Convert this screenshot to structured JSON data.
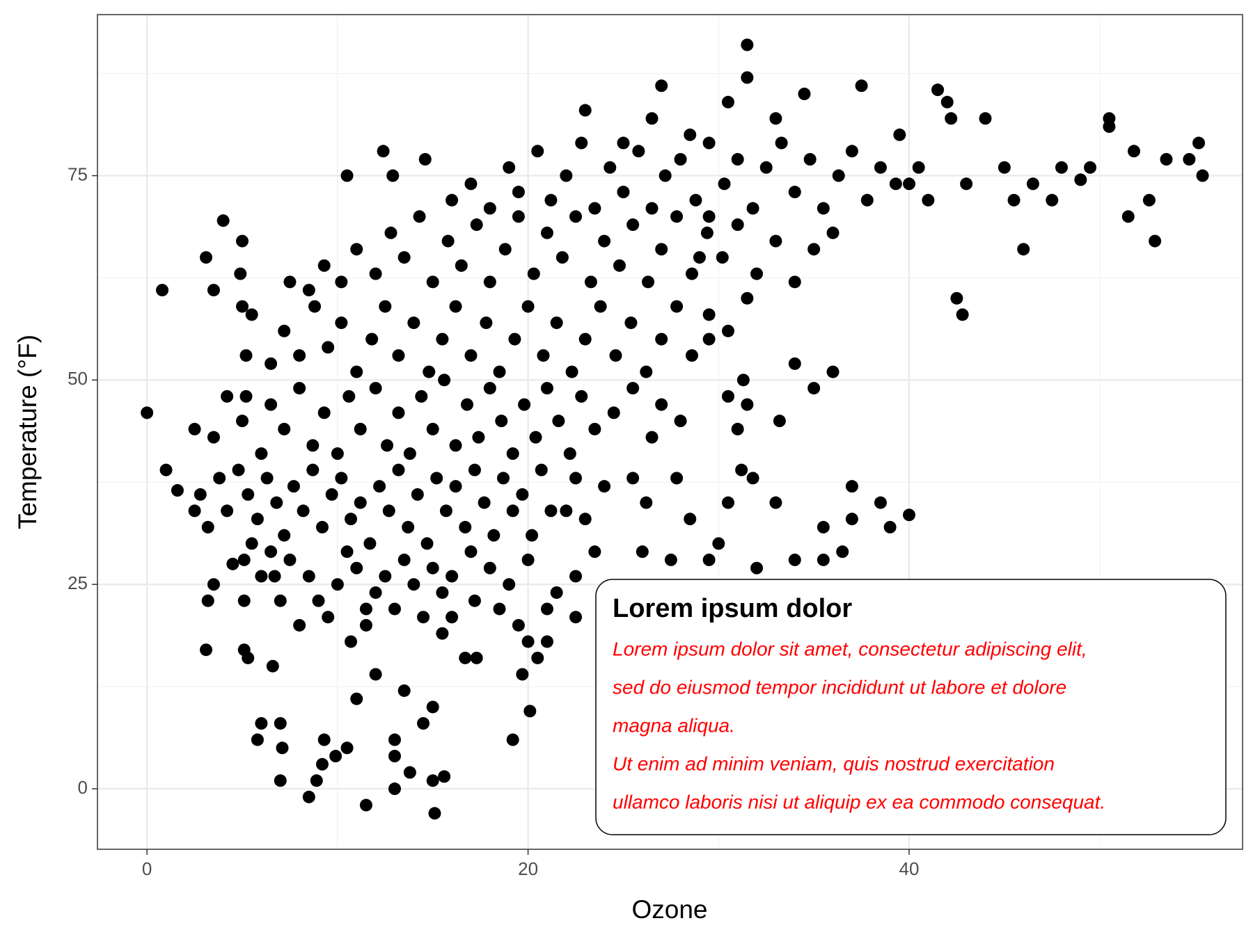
{
  "chart_data": {
    "type": "scatter",
    "x_label": "Ozone",
    "y_label": "Temperature (°F)",
    "xlim": [
      -2.6,
      57.5
    ],
    "ylim": [
      -7.4,
      94.7
    ],
    "xticks": [
      0,
      20,
      40
    ],
    "yticks": [
      0,
      25,
      50,
      75
    ],
    "grid": true,
    "color": "#000000",
    "x": [
      0,
      0.8,
      1,
      1.6,
      2.5,
      2.5,
      3.1,
      3.1,
      3.5,
      4,
      4.9,
      5,
      5.1,
      5.2,
      5.2,
      5.1,
      5.1,
      6.7,
      5,
      5.3,
      5.8,
      6,
      6.6,
      7,
      7.1,
      7,
      8.5,
      8.9,
      9.2,
      9.3,
      9.9,
      10.5,
      10.5,
      10.7,
      11,
      11.5,
      11.5,
      12,
      13,
      13,
      13,
      13.5,
      13.8,
      14.5,
      15,
      15.1,
      15.6,
      15,
      12.4,
      12.9,
      14.6,
      19.2,
      20.1,
      19.7,
      20,
      17.3,
      16.7,
      15.5,
      16,
      17.2,
      44,
      42,
      42.2,
      43,
      42.5,
      42.8,
      45,
      46,
      46.5,
      48,
      45.5,
      47.5,
      49,
      49.5,
      50.5,
      50.5,
      51.5,
      51.8,
      52.6,
      52.9,
      53.5,
      54.7,
      55.2,
      55.4,
      41.5,
      40.5,
      41,
      40,
      39.5,
      37.5,
      34.5,
      33,
      31.5,
      30.5,
      27,
      31.5,
      23,
      28.5,
      26.5,
      25,
      40,
      38.5,
      39,
      37,
      37,
      36.5,
      35.5,
      35.5,
      34,
      33,
      32,
      31.8,
      31.2,
      30.5,
      30,
      29.5,
      28.5,
      27.8,
      27.5,
      26,
      26.2,
      25.5,
      24,
      23.5,
      22.5,
      22,
      22.5,
      21.5,
      21,
      21,
      20.5,
      22.5,
      36,
      35,
      34,
      33.2,
      31.3,
      31.5,
      30.5,
      31,
      29.5,
      29,
      29.5,
      3.2,
      3.5,
      4.5,
      5.5,
      6,
      6.5,
      7,
      7.5,
      8,
      8.5,
      9,
      9.5,
      10,
      10.5,
      11,
      11.5,
      12,
      12.5,
      13,
      13.5,
      14,
      14.5,
      15,
      15.5,
      16,
      17,
      18,
      19,
      20,
      18.5,
      19.5,
      2.8,
      3.2,
      3.8,
      4.2,
      4.8,
      5.3,
      5.8,
      6.3,
      6.8,
      7.2,
      7.7,
      8.2,
      8.7,
      9.2,
      9.7,
      10.2,
      10.7,
      11.2,
      11.7,
      12.2,
      12.7,
      13.2,
      13.7,
      14.2,
      14.7,
      15.2,
      15.7,
      16.2,
      16.7,
      17.2,
      17.7,
      18.2,
      18.7,
      19.2,
      19.7,
      20.2,
      20.7,
      21.2,
      23,
      3.5,
      4.2,
      5,
      6,
      6.5,
      7.2,
      8,
      8.7,
      9.3,
      10,
      10.6,
      11.2,
      12,
      12.6,
      13.2,
      13.8,
      14.4,
      15,
      15.6,
      16.2,
      16.8,
      17.4,
      18,
      18.6,
      19.2,
      19.8,
      20.4,
      21,
      21.6,
      22.2,
      22.8,
      23.5,
      24.5,
      25.5,
      26.5,
      27,
      28,
      5.5,
      6.5,
      7.2,
      8,
      8.8,
      9.5,
      10.2,
      11,
      11.8,
      12.5,
      13.2,
      14,
      14.8,
      15.5,
      16.2,
      17,
      17.8,
      18.5,
      19.3,
      20,
      20.8,
      21.5,
      22.3,
      23,
      23.8,
      24.6,
      25.4,
      26.2,
      27,
      27.8,
      28.6,
      29.5,
      30.5,
      31.5,
      7.5,
      8.5,
      9.3,
      10.2,
      11,
      12,
      12.8,
      13.5,
      14.3,
      15,
      15.8,
      16.5,
      17.3,
      18,
      18.8,
      19.5,
      20.3,
      21,
      21.8,
      22.5,
      23.3,
      24,
      24.8,
      25.5,
      26.3,
      27,
      27.8,
      28.6,
      29.4,
      30.2,
      31,
      32,
      33,
      34,
      35,
      36,
      16,
      17,
      18,
      19,
      19.5,
      20.5,
      21.2,
      22,
      22.8,
      23.5,
      24.3,
      25,
      25.8,
      26.5,
      27.2,
      28,
      28.8,
      29.5,
      30.3,
      31,
      31.8,
      32.5,
      33.3,
      34,
      34.8,
      35.5,
      36.3,
      37,
      37.8,
      38.5,
      39.3
    ],
    "y": [
      46,
      61,
      39,
      36.5,
      44,
      34,
      65,
      17,
      61,
      69.5,
      63,
      59,
      23,
      53,
      48,
      17,
      28,
      26,
      67,
      16,
      6,
      8,
      15,
      1,
      5,
      8,
      -1,
      1,
      3,
      6,
      4,
      5,
      75,
      18,
      11,
      22,
      -2,
      14,
      0,
      4,
      6,
      12,
      2,
      8,
      1,
      -3,
      1.5,
      10,
      78,
      75,
      77,
      6,
      9.5,
      14,
      18,
      16,
      16,
      19,
      21,
      23,
      82,
      84,
      82,
      74,
      60,
      58,
      76,
      66,
      74,
      76,
      72,
      72,
      74.5,
      76,
      82,
      81,
      70,
      78,
      72,
      67,
      77,
      77,
      79,
      75,
      85.5,
      76,
      72,
      74,
      80,
      86,
      85,
      82,
      91,
      84,
      86,
      87,
      83,
      80,
      82,
      79,
      33.5,
      35,
      32,
      37,
      33,
      29,
      32,
      28,
      28,
      35,
      27,
      38,
      39,
      35,
      30,
      28,
      33,
      38,
      28,
      29,
      35,
      38,
      37,
      29,
      38,
      34,
      26,
      24,
      22,
      18,
      16,
      21,
      51,
      49,
      52,
      45,
      50,
      47,
      48,
      44,
      55,
      65,
      70,
      23,
      25,
      27.5,
      30,
      26,
      29,
      23,
      28,
      20,
      26,
      23,
      21,
      25,
      29,
      27,
      20,
      24,
      26,
      22,
      28,
      25,
      21,
      27,
      24,
      26,
      29,
      27,
      25,
      28,
      22,
      20,
      36,
      32,
      38,
      34,
      39,
      36,
      33,
      38,
      35,
      31,
      37,
      34,
      39,
      32,
      36,
      38,
      33,
      35,
      30,
      37,
      34,
      39,
      32,
      36,
      30,
      38,
      34,
      37,
      32,
      39,
      35,
      31,
      38,
      34,
      36,
      31,
      39,
      34,
      33,
      43,
      48,
      45,
      41,
      47,
      44,
      49,
      42,
      46,
      41,
      48,
      44,
      49,
      42,
      46,
      41,
      48,
      44,
      50,
      42,
      47,
      43,
      49,
      45,
      41,
      47,
      43,
      49,
      45,
      41,
      48,
      44,
      46,
      49,
      43,
      47,
      45,
      58,
      52,
      56,
      53,
      59,
      54,
      57,
      51,
      55,
      59,
      53,
      57,
      51,
      55,
      59,
      53,
      57,
      51,
      55,
      59,
      53,
      57,
      51,
      55,
      59,
      53,
      57,
      51,
      55,
      59,
      53,
      58,
      56,
      60,
      62,
      61,
      64,
      62,
      66,
      63,
      68,
      65,
      70,
      62,
      67,
      64,
      69,
      62,
      66,
      70,
      63,
      68,
      65,
      70,
      62,
      67,
      64,
      69,
      62,
      66,
      70,
      63,
      68,
      65,
      69,
      63,
      67,
      62,
      66,
      68,
      72,
      74,
      71,
      76,
      73,
      78,
      72,
      75,
      79,
      71,
      76,
      73,
      78,
      71,
      75,
      77,
      72,
      79,
      74,
      77,
      71,
      76,
      79,
      73,
      77,
      71,
      75,
      78,
      72,
      76,
      74
    ],
    "annotation": {
      "title": "Lorem ipsum dolor",
      "lines": [
        "Lorem ipsum dolor sit amet, consectetur adipiscing elit,",
        "sed do eiusmod tempor incididunt ut labore et dolore",
        "magna aliqua.",
        "Ut enim ad minim veniam, quis nostrud exercitation",
        "ullamco laboris nisi ut aliquip ex ea commodo consequat."
      ],
      "text_color": "#ff0000"
    }
  }
}
